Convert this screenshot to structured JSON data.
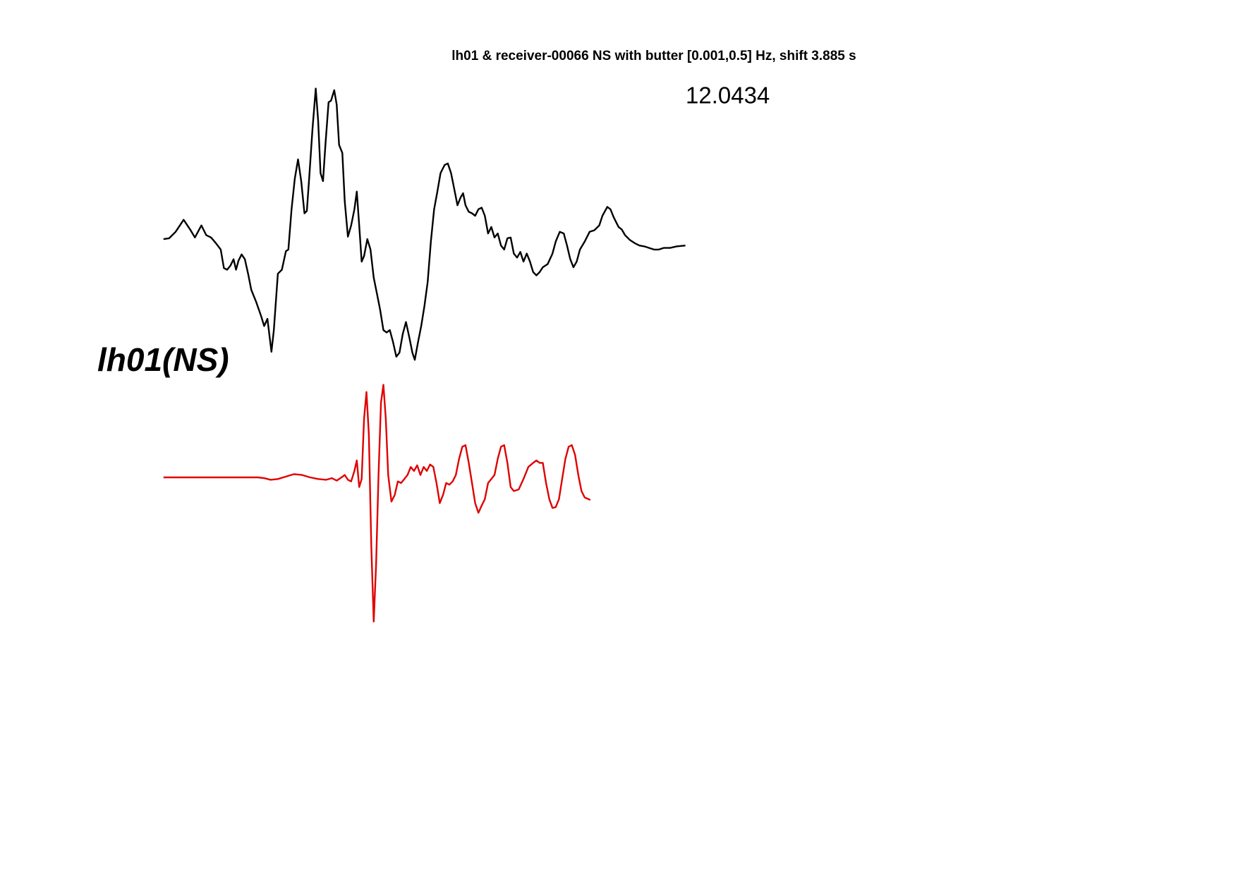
{
  "chart_data": {
    "type": "line",
    "title": "lh01 & receiver-00066 NS with butter [0.001,0.5] Hz, shift 3.885 s",
    "annotation": "12.0434",
    "trace_label": "lh01(NS)",
    "series": [
      {
        "color": "#000000",
        "x": [
          0,
          7,
          15,
          25,
          33,
          39,
          47,
          53,
          59,
          65,
          71,
          75,
          79,
          83,
          87,
          90,
          93,
          97,
          101,
          105,
          109,
          115,
          121,
          125,
          129,
          134,
          137,
          142,
          147,
          152,
          155,
          159,
          163,
          167,
          171,
          175,
          178,
          181,
          185,
          189,
          192,
          195,
          198,
          201,
          205,
          208,
          212,
          215,
          218,
          222,
          225,
          229,
          233,
          237,
          240,
          243,
          246,
          249,
          253,
          257,
          261,
          265,
          269,
          273,
          277,
          281,
          285,
          289,
          293,
          297,
          301,
          305,
          309,
          312,
          316,
          320,
          324,
          328,
          332,
          336,
          340,
          344,
          349,
          353,
          357,
          361,
          365,
          369,
          372,
          375,
          379,
          383,
          387,
          391,
          395,
          399,
          403,
          407,
          411,
          415,
          419,
          423,
          427,
          431,
          435,
          439,
          443,
          447,
          451,
          455,
          459,
          463,
          467,
          471,
          477,
          483,
          487,
          492,
          497,
          501,
          505,
          509,
          513,
          517,
          523,
          529,
          535,
          541,
          545,
          551,
          555,
          559,
          565,
          569,
          573,
          579,
          585,
          591,
          597,
          603,
          609,
          615,
          621,
          629,
          637,
          648
        ],
        "values": [
          3,
          4,
          12,
          27,
          15,
          5,
          20,
          8,
          5,
          -2,
          -10,
          -33,
          -35,
          -30,
          -22,
          -35,
          -24,
          -16,
          -22,
          -40,
          -60,
          -75,
          -92,
          -105,
          -96,
          -137,
          -110,
          -40,
          -35,
          -12,
          -10,
          40,
          78,
          102,
          75,
          35,
          38,
          80,
          140,
          190,
          150,
          85,
          75,
          120,
          173,
          175,
          188,
          170,
          120,
          110,
          50,
          6,
          20,
          40,
          62,
          20,
          -25,
          -18,
          3,
          -10,
          -45,
          -65,
          -85,
          -110,
          -113,
          -110,
          -125,
          -143,
          -138,
          -115,
          -100,
          -118,
          -138,
          -147,
          -125,
          -105,
          -80,
          -50,
          0,
          40,
          62,
          85,
          95,
          97,
          85,
          65,
          45,
          55,
          60,
          45,
          37,
          35,
          32,
          40,
          42,
          32,
          10,
          18,
          5,
          10,
          -5,
          -10,
          4,
          5,
          -15,
          -20,
          -13,
          -25,
          -15,
          -25,
          -38,
          -42,
          -38,
          -32,
          -28,
          -15,
          0,
          12,
          10,
          -5,
          -22,
          -32,
          -25,
          -10,
          0,
          12,
          14,
          20,
          32,
          43,
          40,
          30,
          18,
          15,
          8,
          2,
          -2,
          -5,
          -6,
          -8,
          -10,
          -10,
          -8,
          -8,
          -6,
          -5
        ]
      },
      {
        "color": "#e00000",
        "x": [
          0,
          117,
          125,
          133,
          142,
          152,
          162,
          172,
          182,
          192,
          202,
          209,
          215,
          221,
          225,
          229,
          233,
          237,
          240,
          243,
          246,
          249,
          252,
          255,
          258,
          261,
          264,
          267,
          270,
          273,
          276,
          279,
          283,
          287,
          291,
          295,
          299,
          303,
          307,
          311,
          315,
          319,
          323,
          327,
          331,
          335,
          339,
          343,
          347,
          351,
          355,
          359,
          363,
          367,
          371,
          375,
          379,
          383,
          387,
          391,
          395,
          399,
          403,
          407,
          411,
          415,
          419,
          423,
          427,
          431,
          435,
          441,
          447,
          453,
          459,
          463,
          467,
          471,
          475,
          479,
          483,
          487,
          491,
          495,
          499,
          503,
          507,
          511,
          515,
          519,
          523,
          530
        ],
        "values": [
          0,
          0,
          -1,
          -3,
          -2,
          1,
          4,
          3,
          0,
          -2,
          -3,
          -1,
          -4,
          0,
          3,
          -3,
          -5,
          8,
          21,
          -12,
          -2,
          73,
          106,
          53,
          -87,
          -179,
          -107,
          3,
          93,
          115,
          73,
          3,
          -30,
          -22,
          -5,
          -7,
          -2,
          3,
          13,
          8,
          15,
          3,
          13,
          8,
          16,
          13,
          -7,
          -32,
          -22,
          -7,
          -9,
          -5,
          3,
          23,
          38,
          40,
          18,
          -7,
          -32,
          -44,
          -35,
          -27,
          -7,
          -2,
          3,
          23,
          38,
          40,
          18,
          -12,
          -17,
          -15,
          -2,
          13,
          18,
          21,
          18,
          18,
          -7,
          -27,
          -38,
          -37,
          -27,
          -2,
          23,
          38,
          40,
          28,
          3,
          -17,
          -25,
          -28
        ]
      }
    ]
  }
}
